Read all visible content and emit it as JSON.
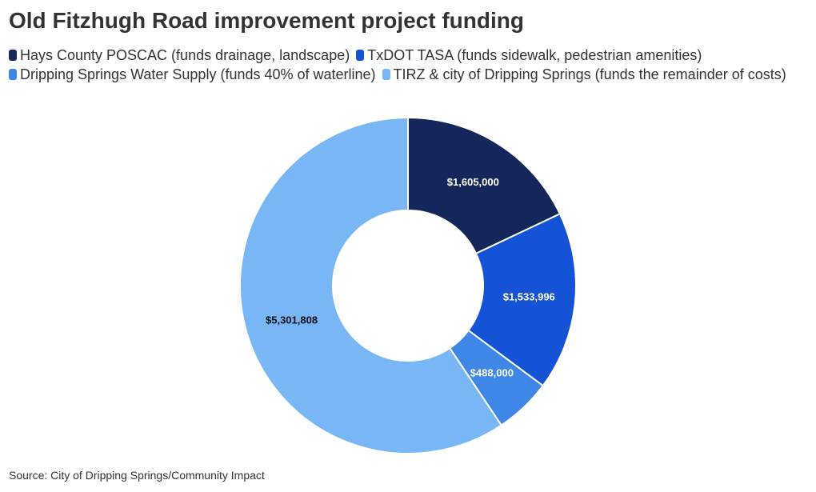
{
  "chart_data": {
    "type": "pie",
    "donut": true,
    "title": "Old Fitzhugh Road improvement project funding",
    "categories": [
      "Hays County POSCAC (funds drainage, landscape)",
      "TxDOT TASA (funds sidewalk, pedestrian amenities)",
      "Dripping Springs Water Supply (funds 40% of waterline)",
      "TIRZ & city of Dripping Springs (funds the remainder of costs)"
    ],
    "values": [
      1605000,
      1533996,
      488000,
      5301808
    ],
    "value_labels": [
      "$1,605,000",
      "$1,533,996",
      "$488,000",
      "$5,301,808"
    ],
    "colors": [
      "#15275a",
      "#1553d6",
      "#3f87e7",
      "#78b6f6"
    ],
    "source": "Source: City of Dripping Springs/Community Impact"
  }
}
